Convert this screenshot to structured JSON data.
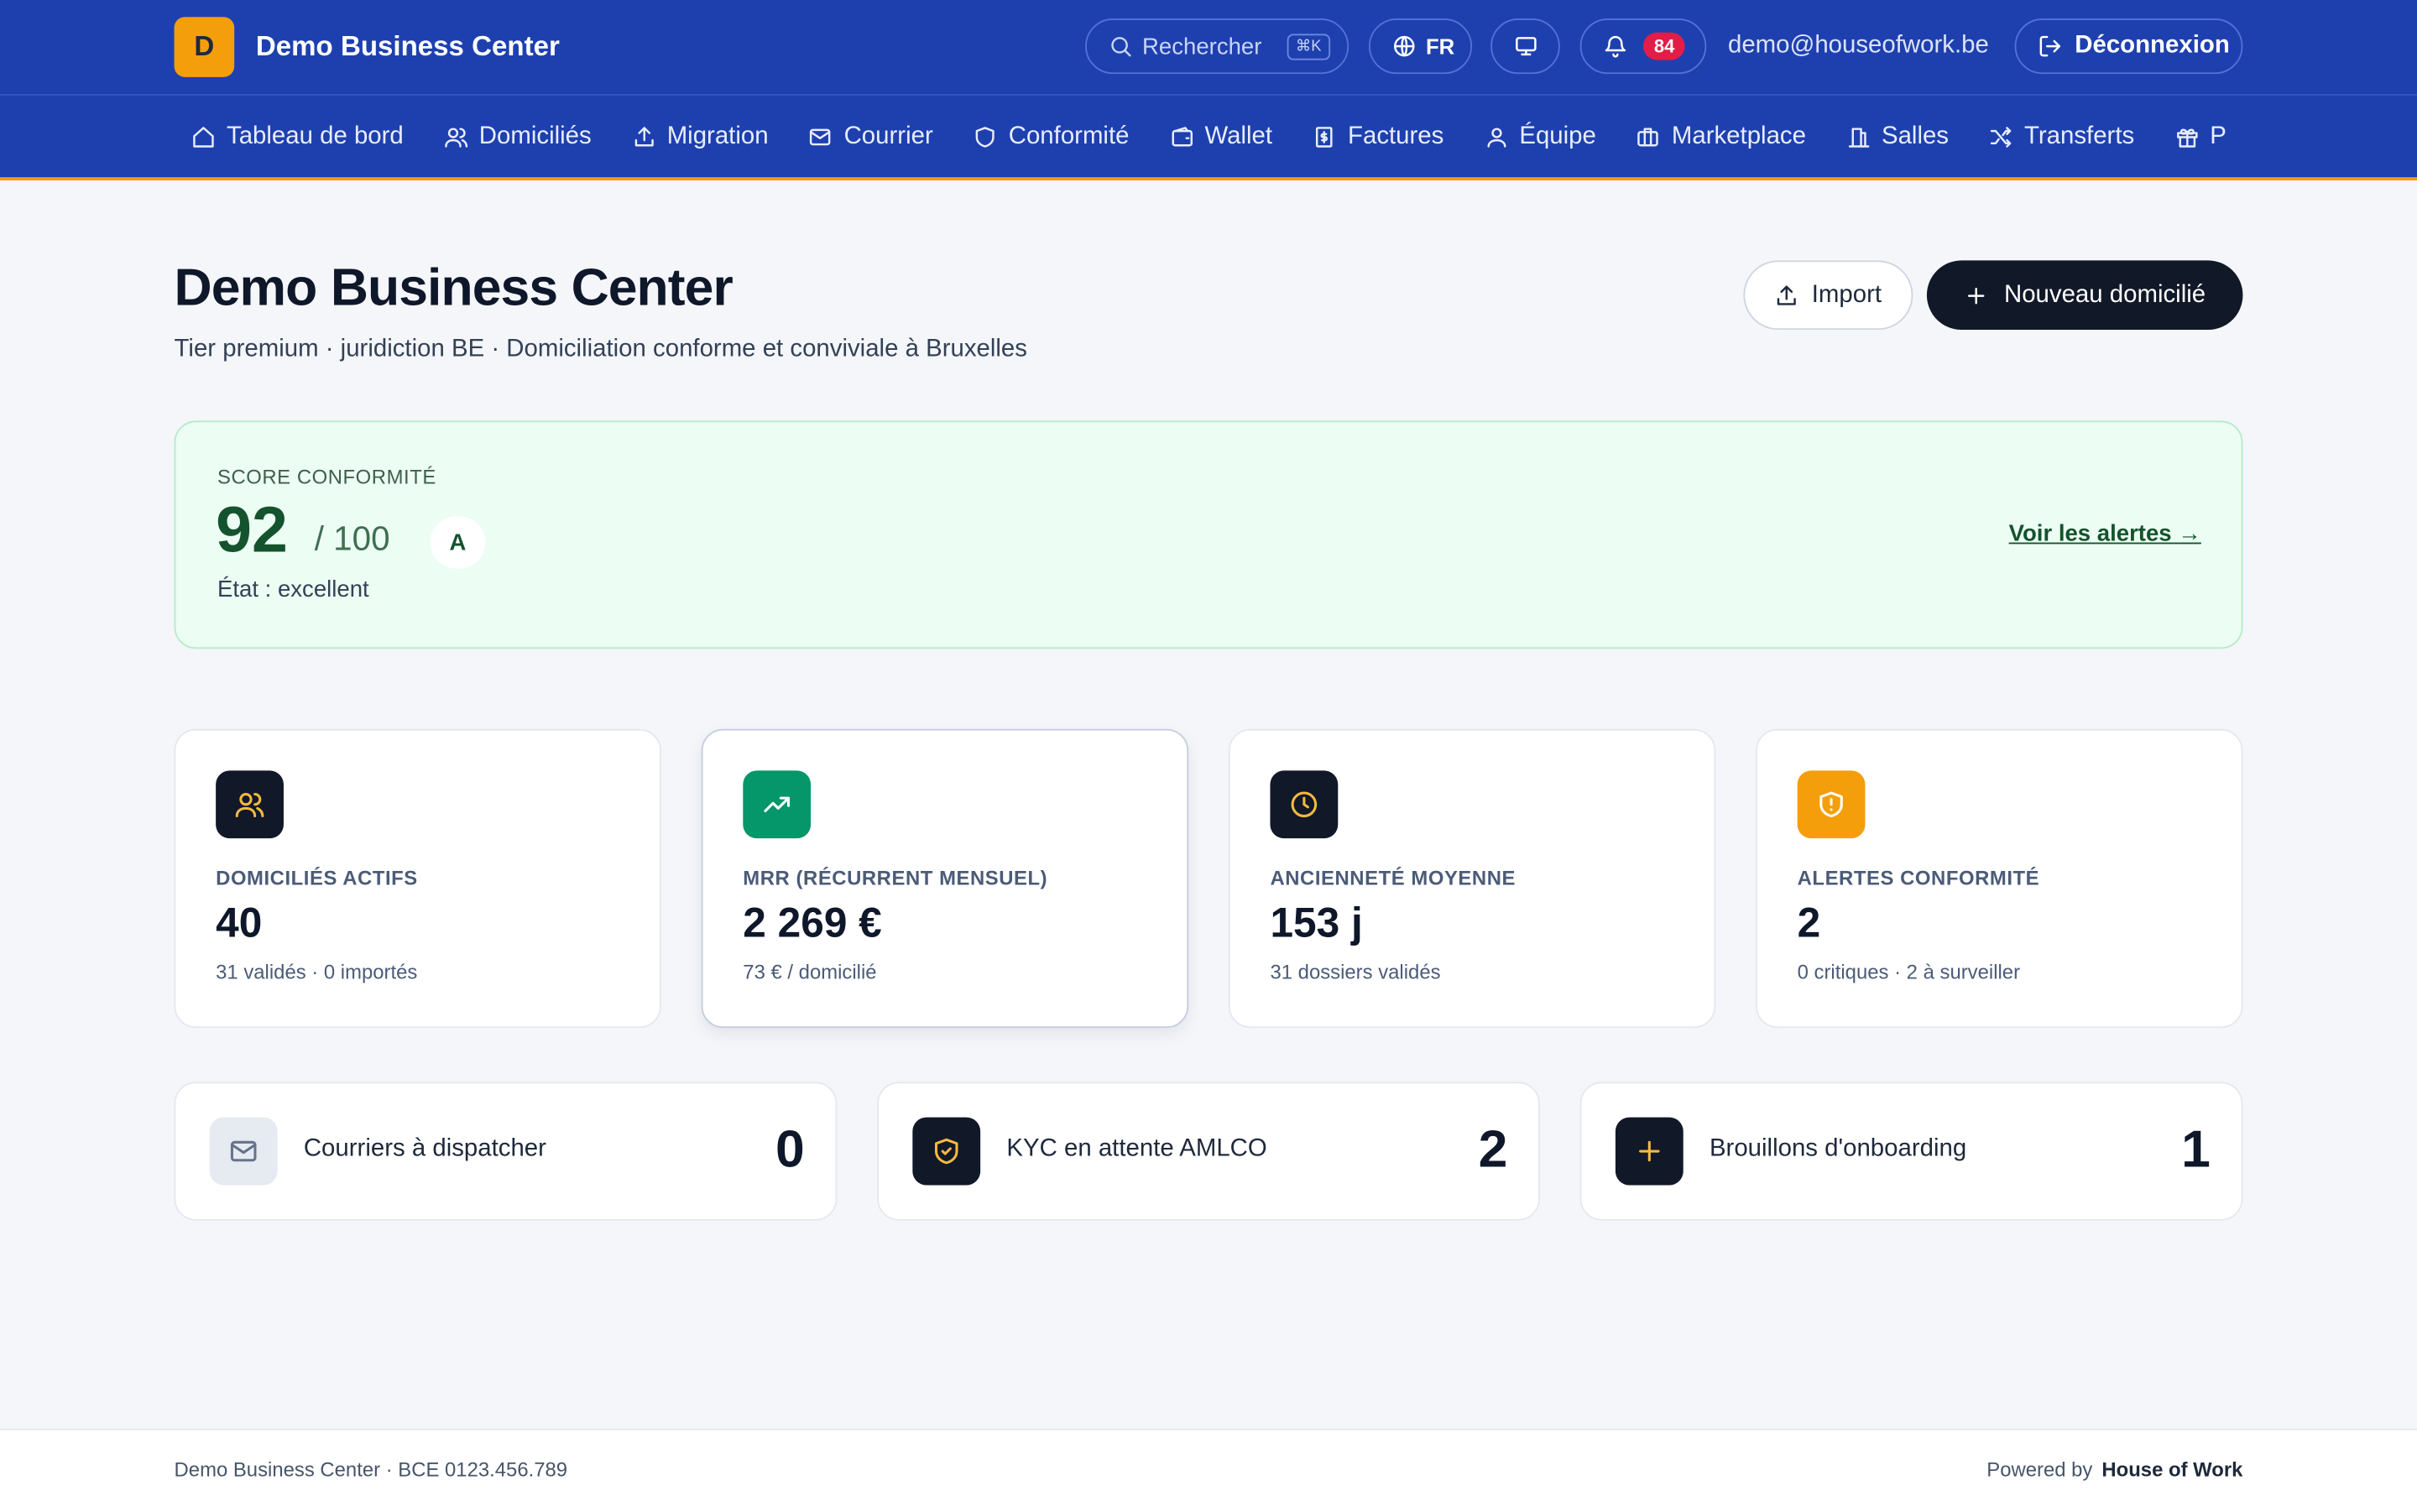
{
  "header": {
    "logo_letter": "D",
    "title": "Demo Business Center",
    "search": "Rechercher",
    "shortcut": "⌘K",
    "language": "FR",
    "notification_count": 84,
    "email": "demo@houseofwork.be",
    "logout": "Déconnexion"
  },
  "nav": [
    "Tableau de bord",
    "Domiciliés",
    "Migration",
    "Courrier",
    "Conformité",
    "Wallet",
    "Factures",
    "Équipe",
    "Marketplace",
    "Salles",
    "Transferts",
    "P"
  ],
  "page": {
    "title": "Demo Business Center",
    "subtitle": "Tier premium · juridiction BE · Domiciliation conforme et conviviale à Bruxelles",
    "import_button": "Import",
    "new_button": "Nouveau domicilié"
  },
  "score": {
    "label": "SCORE CONFORMITÉ",
    "value": 92,
    "max": "/ 100",
    "grade": "A",
    "state": "État : excellent",
    "link": "Voir les alertes →"
  },
  "stats": [
    {
      "label": "DOMICILIÉS ACTIFS",
      "value": 40,
      "note": "31 validés · 0 importés"
    },
    {
      "label": "MRR (RÉCURRENT MENSUEL)",
      "value": "2 269 €",
      "note": "73 € / domicilié"
    },
    {
      "label": "ANCIENNETÉ MOYENNE",
      "value": "153 j",
      "note": "31 dossiers validés"
    },
    {
      "label": "ALERTES CONFORMITÉ",
      "value": 2,
      "note": "0 critiques · 2 à surveiller"
    }
  ],
  "tasks": [
    {
      "label": "Courriers à dispatcher",
      "value": 0
    },
    {
      "label": "KYC en attente AMLCO",
      "value": 2
    },
    {
      "label": "Brouillons d'onboarding",
      "value": 1
    }
  ],
  "footer": {
    "left": "Demo Business Center · BCE 0123.456.789",
    "powered": "Powered by",
    "brand": "House of Work"
  }
}
